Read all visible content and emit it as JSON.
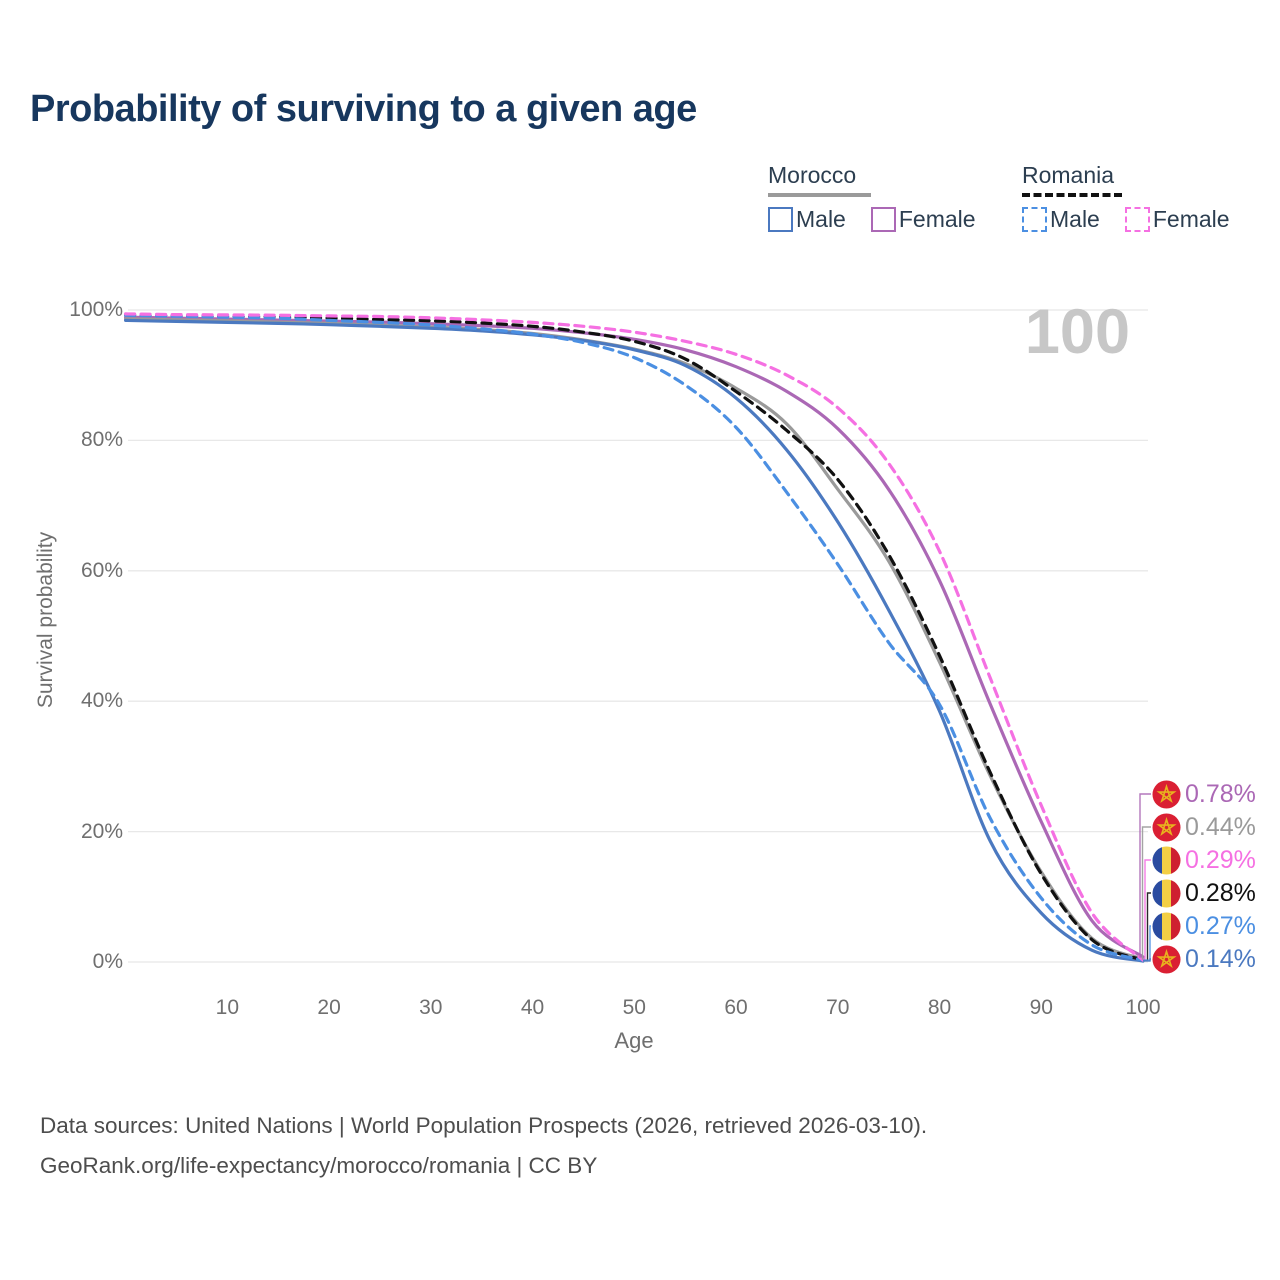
{
  "title": "Probability of surviving to a given age",
  "watermark": "100",
  "legend": {
    "groups": [
      {
        "name": "Morocco",
        "line_style": "solid",
        "underline_color": "#9a9a9a",
        "items": [
          {
            "label": "Male",
            "color": "#4b79c0",
            "dashed": false
          },
          {
            "label": "Female",
            "color": "#ab68b5",
            "dashed": false
          }
        ]
      },
      {
        "name": "Romania",
        "line_style": "dashed",
        "underline_color": "#111111",
        "items": [
          {
            "label": "Male",
            "color": "#4b8fe2",
            "dashed": true
          },
          {
            "label": "Female",
            "color": "#f570e2",
            "dashed": true
          }
        ]
      }
    ]
  },
  "y_axis": {
    "label": "Survival probability",
    "ticks": [
      {
        "label": "100%",
        "value": 100
      },
      {
        "label": "80%",
        "value": 80
      },
      {
        "label": "60%",
        "value": 60
      },
      {
        "label": "40%",
        "value": 40
      },
      {
        "label": "20%",
        "value": 20
      },
      {
        "label": "0%",
        "value": 0
      }
    ]
  },
  "x_axis": {
    "label": "Age",
    "ticks": [
      {
        "label": "10",
        "value": 10
      },
      {
        "label": "20",
        "value": 20
      },
      {
        "label": "30",
        "value": 30
      },
      {
        "label": "40",
        "value": 40
      },
      {
        "label": "50",
        "value": 50
      },
      {
        "label": "60",
        "value": 60
      },
      {
        "label": "70",
        "value": 70
      },
      {
        "label": "80",
        "value": 80
      },
      {
        "label": "90",
        "value": 90
      },
      {
        "label": "100",
        "value": 100
      }
    ]
  },
  "end_labels": [
    {
      "value": "0.78%",
      "flag": "morocco",
      "series": "Morocco Female",
      "color": "#ab68b5"
    },
    {
      "value": "0.44%",
      "flag": "morocco",
      "series": "Morocco Both sexes",
      "color": "#9a9a9a"
    },
    {
      "value": "0.29%",
      "flag": "romania",
      "series": "Romania Female",
      "color": "#f570e2"
    },
    {
      "value": "0.28%",
      "flag": "romania",
      "series": "Romania Both sexes",
      "color": "#111111"
    },
    {
      "value": "0.27%",
      "flag": "romania",
      "series": "Romania Male",
      "color": "#4b8fe2"
    },
    {
      "value": "0.14%",
      "flag": "morocco",
      "series": "Morocco Male",
      "color": "#4b79c0"
    }
  ],
  "source_lines": [
    "Data sources: United Nations | World Population Prospects (2026, retrieved 2026-03-10).",
    "GeoRank.org/life-expectancy/morocco/romania | CC BY"
  ],
  "chart_data": {
    "type": "line",
    "title": "Probability of surviving to a given age",
    "xlabel": "Age",
    "ylabel": "Survival probability",
    "xlim": [
      0,
      100
    ],
    "ylim": [
      0,
      100
    ],
    "grid": "horizontal",
    "x": [
      0,
      5,
      10,
      15,
      20,
      25,
      30,
      35,
      40,
      45,
      50,
      55,
      60,
      65,
      70,
      75,
      80,
      85,
      90,
      95,
      100
    ],
    "series": [
      {
        "name": "Morocco Female",
        "country": "Morocco",
        "sex": "Female",
        "color": "#ab68b5",
        "dashed": false,
        "values": [
          98.9,
          98.75,
          98.6,
          98.45,
          98.3,
          98.15,
          97.9,
          97.6,
          97.2,
          96.5,
          95.5,
          93.9,
          91.3,
          87.5,
          81.8,
          72.5,
          58.5,
          39.5,
          21.5,
          6.3,
          0.78
        ]
      },
      {
        "name": "Morocco Both sexes",
        "country": "Morocco",
        "sex": "Both",
        "color": "#9a9a9a",
        "dashed": false,
        "values": [
          98.65,
          98.5,
          98.35,
          98.15,
          97.95,
          97.7,
          97.4,
          97.0,
          96.4,
          95.4,
          94.0,
          91.8,
          88.0,
          82.5,
          72.5,
          61.5,
          46.0,
          28.5,
          13.8,
          3.6,
          0.44
        ]
      },
      {
        "name": "Morocco Male",
        "country": "Morocco",
        "sex": "Male",
        "color": "#4b79c0",
        "dashed": false,
        "values": [
          98.4,
          98.25,
          98.1,
          97.95,
          97.75,
          97.5,
          97.2,
          96.8,
          96.2,
          95.3,
          93.9,
          91.5,
          86.5,
          78.5,
          67.5,
          54.0,
          38.5,
          18.5,
          7.5,
          1.8,
          0.14
        ]
      },
      {
        "name": "Romania Both sexes",
        "country": "Romania",
        "sex": "Both",
        "color": "#111111",
        "dashed": true,
        "values": [
          99.25,
          99.1,
          99.0,
          98.9,
          98.75,
          98.55,
          98.35,
          98.0,
          97.5,
          96.6,
          95.2,
          92.5,
          87.5,
          81.5,
          74.0,
          62.5,
          47.0,
          29.0,
          13.5,
          3.4,
          0.28
        ]
      },
      {
        "name": "Romania Male",
        "country": "Romania",
        "sex": "Male",
        "color": "#4b8fe2",
        "dashed": true,
        "values": [
          99.2,
          99.05,
          98.9,
          98.75,
          98.4,
          98.1,
          97.7,
          97.1,
          96.3,
          95.0,
          92.7,
          88.5,
          82.0,
          72.0,
          61.0,
          49.0,
          39.5,
          22.0,
          9.8,
          2.6,
          0.27
        ]
      },
      {
        "name": "Romania Female",
        "country": "Romania",
        "sex": "Female",
        "color": "#f570e2",
        "dashed": true,
        "values": [
          99.4,
          99.3,
          99.25,
          99.2,
          99.1,
          99.0,
          98.8,
          98.5,
          98.1,
          97.5,
          96.6,
          95.2,
          93.2,
          90.0,
          85.0,
          76.5,
          63.0,
          43.5,
          24.0,
          7.5,
          0.29
        ]
      }
    ],
    "end_values_at_age_100_pct": {
      "Morocco Female": 0.78,
      "Morocco Both sexes": 0.44,
      "Romania Female": 0.29,
      "Romania Both sexes": 0.28,
      "Romania Male": 0.27,
      "Morocco Male": 0.14
    }
  }
}
